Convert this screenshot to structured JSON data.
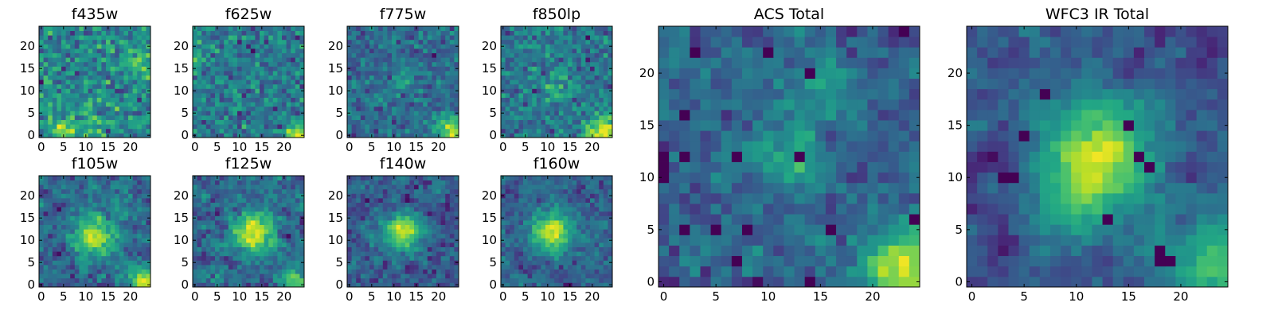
{
  "figure": {
    "colormap": "viridis",
    "colors": {
      "low": "#440154",
      "mid": "#21918c",
      "high": "#fde725"
    }
  },
  "chart_data": [
    {
      "type": "heatmap",
      "title": "f435w",
      "size": 25,
      "xlim": [
        0,
        24
      ],
      "ylim": [
        0,
        24
      ],
      "xticks": [
        "0",
        "5",
        "10",
        "15",
        "20"
      ],
      "yticks": [
        "0",
        "5",
        "10",
        "15",
        "20"
      ],
      "seed": 11,
      "smooth": 0,
      "blobs": [
        [
          22,
          16,
          2,
          0.4
        ],
        [
          5,
          1,
          2,
          0.5
        ],
        [
          12,
          2,
          2,
          0.3
        ]
      ],
      "colorbar": false
    },
    {
      "type": "heatmap",
      "title": "f625w",
      "size": 25,
      "xlim": [
        0,
        24
      ],
      "ylim": [
        0,
        24
      ],
      "xticks": [
        "0",
        "5",
        "10",
        "15",
        "20"
      ],
      "yticks": [
        "0",
        "5",
        "10",
        "15",
        "20"
      ],
      "seed": 23,
      "smooth": 0,
      "blobs": [
        [
          23,
          0,
          2,
          0.9
        ],
        [
          1,
          18,
          2,
          0.3
        ]
      ],
      "colorbar": false
    },
    {
      "type": "heatmap",
      "title": "f775w",
      "size": 25,
      "xlim": [
        0,
        24
      ],
      "ylim": [
        0,
        24
      ],
      "xticks": [
        "0",
        "5",
        "10",
        "15",
        "20"
      ],
      "yticks": [
        "0",
        "5",
        "10",
        "15",
        "20"
      ],
      "seed": 37,
      "smooth": 0,
      "blobs": [
        [
          23,
          1,
          2.5,
          1.0
        ],
        [
          12,
          13,
          2,
          0.3
        ]
      ],
      "colorbar": false
    },
    {
      "type": "heatmap",
      "title": "f850lp",
      "size": 25,
      "xlim": [
        0,
        24
      ],
      "ylim": [
        0,
        24
      ],
      "xticks": [
        "0",
        "5",
        "10",
        "15",
        "20"
      ],
      "yticks": [
        "0",
        "5",
        "10",
        "15",
        "20"
      ],
      "seed": 41,
      "smooth": 0,
      "blobs": [
        [
          22,
          1,
          2.5,
          1.0
        ],
        [
          12,
          11,
          2,
          0.4
        ]
      ],
      "colorbar": false
    },
    {
      "type": "heatmap",
      "title": "f105w",
      "size": 25,
      "xlim": [
        0,
        24
      ],
      "ylim": [
        0,
        24
      ],
      "xticks": [
        "0",
        "5",
        "10",
        "15",
        "20"
      ],
      "yticks": [
        "0",
        "5",
        "10",
        "15",
        "20"
      ],
      "seed": 53,
      "smooth": 1,
      "blobs": [
        [
          12,
          11,
          3,
          0.8
        ],
        [
          23,
          1,
          2,
          0.8
        ]
      ],
      "colorbar": false
    },
    {
      "type": "heatmap",
      "title": "f125w",
      "size": 25,
      "xlim": [
        0,
        24
      ],
      "ylim": [
        0,
        24
      ],
      "xticks": [
        "0",
        "5",
        "10",
        "15",
        "20"
      ],
      "yticks": [
        "0",
        "5",
        "10",
        "15",
        "20"
      ],
      "seed": 67,
      "smooth": 1,
      "blobs": [
        [
          13,
          12,
          3,
          0.9
        ],
        [
          22,
          1,
          2,
          0.6
        ]
      ],
      "colorbar": false
    },
    {
      "type": "heatmap",
      "title": "f140w",
      "size": 25,
      "xlim": [
        0,
        24
      ],
      "ylim": [
        0,
        24
      ],
      "xticks": [
        "0",
        "5",
        "10",
        "15",
        "20"
      ],
      "yticks": [
        "0",
        "5",
        "10",
        "15",
        "20"
      ],
      "seed": 71,
      "smooth": 1,
      "blobs": [
        [
          12,
          12,
          3,
          0.9
        ]
      ],
      "colorbar": false
    },
    {
      "type": "heatmap",
      "title": "f160w",
      "size": 25,
      "xlim": [
        0,
        24
      ],
      "ylim": [
        0,
        24
      ],
      "xticks": [
        "0",
        "5",
        "10",
        "15",
        "20"
      ],
      "yticks": [
        "0",
        "5",
        "10",
        "15",
        "20"
      ],
      "seed": 83,
      "smooth": 1,
      "blobs": [
        [
          11,
          12,
          3,
          1.0
        ]
      ],
      "colorbar": false
    },
    {
      "type": "heatmap",
      "title": "ACS Total",
      "size": 25,
      "xlim": [
        0,
        24
      ],
      "ylim": [
        0,
        24
      ],
      "xticks": [
        "0",
        "5",
        "10",
        "15",
        "20"
      ],
      "yticks": [
        "0",
        "5",
        "10",
        "15",
        "20"
      ],
      "seed": 97,
      "smooth": 1,
      "blobs": [
        [
          23,
          1,
          2.5,
          1.0
        ],
        [
          12,
          12,
          2,
          0.5
        ],
        [
          16,
          19,
          2,
          0.3
        ]
      ],
      "dark_cells": [
        [
          3,
          22
        ],
        [
          10,
          22
        ],
        [
          14,
          20
        ],
        [
          23,
          24
        ],
        [
          2,
          16
        ],
        [
          0,
          12
        ],
        [
          2,
          12
        ],
        [
          7,
          12
        ],
        [
          0,
          11
        ],
        [
          0,
          10
        ],
        [
          13,
          12
        ],
        [
          24,
          6
        ],
        [
          5,
          5
        ],
        [
          8,
          5
        ],
        [
          16,
          5
        ],
        [
          2,
          5
        ],
        [
          7,
          2
        ],
        [
          14,
          0
        ]
      ],
      "colorbar": false
    },
    {
      "type": "heatmap",
      "title": "WFC3 IR Total",
      "size": 25,
      "xlim": [
        0,
        24
      ],
      "ylim": [
        0,
        24
      ],
      "xticks": [
        "0",
        "5",
        "10",
        "15",
        "20"
      ],
      "yticks": [
        "0",
        "5",
        "10",
        "15",
        "20"
      ],
      "seed": 109,
      "smooth": 2,
      "blobs": [
        [
          12,
          12,
          3.5,
          1.0
        ],
        [
          23,
          2,
          3,
          0.6
        ],
        [
          9,
          7,
          2,
          0.3
        ]
      ],
      "dark_cells": [
        [
          7,
          18
        ],
        [
          17,
          11
        ],
        [
          16,
          12
        ],
        [
          3,
          10
        ],
        [
          4,
          10
        ],
        [
          13,
          6
        ],
        [
          18,
          3
        ],
        [
          19,
          2
        ],
        [
          18,
          2
        ],
        [
          5,
          14
        ],
        [
          15,
          15
        ]
      ],
      "colorbar": false
    }
  ]
}
